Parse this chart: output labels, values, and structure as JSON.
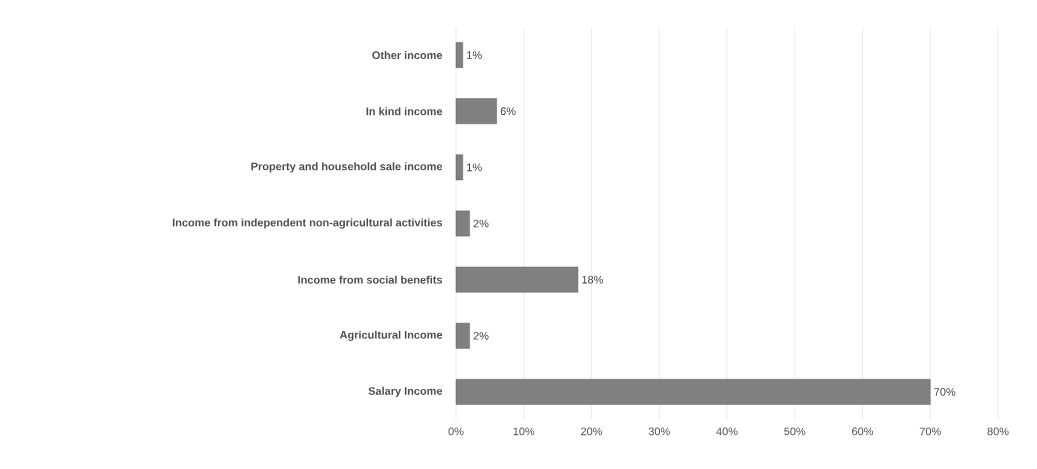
{
  "chart_data": {
    "type": "bar",
    "orientation": "horizontal",
    "categories": [
      "Other income",
      "In kind income",
      "Property and household sale income",
      "Income from independent non-agricultural activities",
      "Income from social benefits",
      "Agricultural Income",
      "Salary Income"
    ],
    "values": [
      1,
      6,
      1,
      2,
      18,
      2,
      70
    ],
    "value_labels": [
      "1%",
      "6%",
      "1%",
      "2%",
      "18%",
      "2%",
      "70%"
    ],
    "color": "#808080",
    "xlim": [
      0,
      80
    ],
    "xticks": [
      {
        "value": 0,
        "label": "0%"
      },
      {
        "value": 10,
        "label": "10%"
      },
      {
        "value": 20,
        "label": "20%"
      },
      {
        "value": 30,
        "label": "30%"
      },
      {
        "value": 40,
        "label": "40%"
      },
      {
        "value": 50,
        "label": "50%"
      },
      {
        "value": 60,
        "label": "60%"
      },
      {
        "value": 70,
        "label": "70%"
      },
      {
        "value": 80,
        "label": "80%"
      }
    ],
    "grid": "x"
  }
}
